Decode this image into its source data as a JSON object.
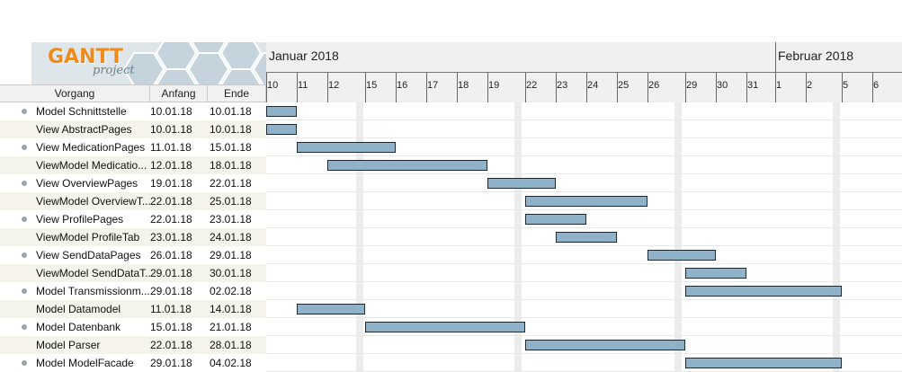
{
  "logo": {
    "text": "GANTT",
    "sub": "project"
  },
  "columns": {
    "task": "Vorgang",
    "start": "Anfang",
    "end": "Ende"
  },
  "timeline": {
    "months": [
      "Januar 2018",
      "Februar 2018"
    ],
    "days": [
      "10",
      "11",
      "12",
      "15",
      "16",
      "17",
      "18",
      "19",
      "22",
      "23",
      "24",
      "25",
      "26",
      "29",
      "30",
      "31",
      "1",
      "2",
      "5",
      "6"
    ]
  },
  "tasks": [
    {
      "name": "Model Schnittstelle",
      "start": "10.01.18",
      "end": "10.01.18"
    },
    {
      "name": "View AbstractPages",
      "start": "10.01.18",
      "end": "10.01.18"
    },
    {
      "name": "View MedicationPages",
      "start": "11.01.18",
      "end": "15.01.18"
    },
    {
      "name": "ViewModel Medicatio...",
      "start": "12.01.18",
      "end": "18.01.18"
    },
    {
      "name": "View OverviewPages",
      "start": "19.01.18",
      "end": "22.01.18"
    },
    {
      "name": "ViewModel OverviewT...",
      "start": "22.01.18",
      "end": "25.01.18"
    },
    {
      "name": "View ProfilePages",
      "start": "22.01.18",
      "end": "23.01.18"
    },
    {
      "name": "ViewModel ProfileTab",
      "start": "23.01.18",
      "end": "24.01.18"
    },
    {
      "name": "View SendDataPages",
      "start": "26.01.18",
      "end": "29.01.18"
    },
    {
      "name": "ViewModel SendDataT...",
      "start": "29.01.18",
      "end": "30.01.18"
    },
    {
      "name": "Model Transmissionm...",
      "start": "29.01.18",
      "end": "02.02.18"
    },
    {
      "name": "Model Datamodel",
      "start": "11.01.18",
      "end": "14.01.18"
    },
    {
      "name": "Model Datenbank",
      "start": "15.01.18",
      "end": "21.01.18"
    },
    {
      "name": "Model Parser",
      "start": "22.01.18",
      "end": "28.01.18"
    },
    {
      "name": "Model ModelFacade",
      "start": "29.01.18",
      "end": "04.02.18"
    }
  ],
  "colors": {
    "bar": "#8fb2c8",
    "bar_border": "#1e2a33",
    "alt_row": "#f4f4ea"
  }
}
